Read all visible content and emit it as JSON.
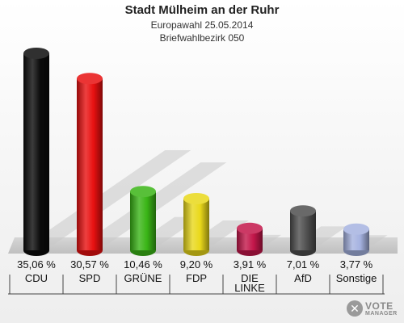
{
  "header": {
    "title": "Stadt Mülheim an der Ruhr",
    "subtitle1": "Europawahl 25.05.2014",
    "subtitle2": "Briefwahlbezirk 050"
  },
  "watermark": {
    "line1": "VOTE",
    "line2": "MANAGER"
  },
  "chart_data": {
    "type": "bar",
    "categories": [
      "CDU",
      "SPD",
      "GRÜNE",
      "FDP",
      "DIE LINKE",
      "AfD",
      "Sonstige"
    ],
    "values": [
      35.06,
      30.57,
      10.46,
      9.2,
      3.91,
      7.01,
      3.77
    ],
    "value_labels": [
      "35,06 %",
      "30,57 %",
      "10,46 %",
      "9,20 %",
      "3,91 %",
      "7,01 %",
      "3,77 %"
    ],
    "colors": [
      "#0b0b0b",
      "#e81010",
      "#3ab516",
      "#e9d81a",
      "#c3164a",
      "#4f4f4f",
      "#a5b2e0"
    ],
    "ylim": [
      0,
      35.06
    ],
    "grid": false
  }
}
